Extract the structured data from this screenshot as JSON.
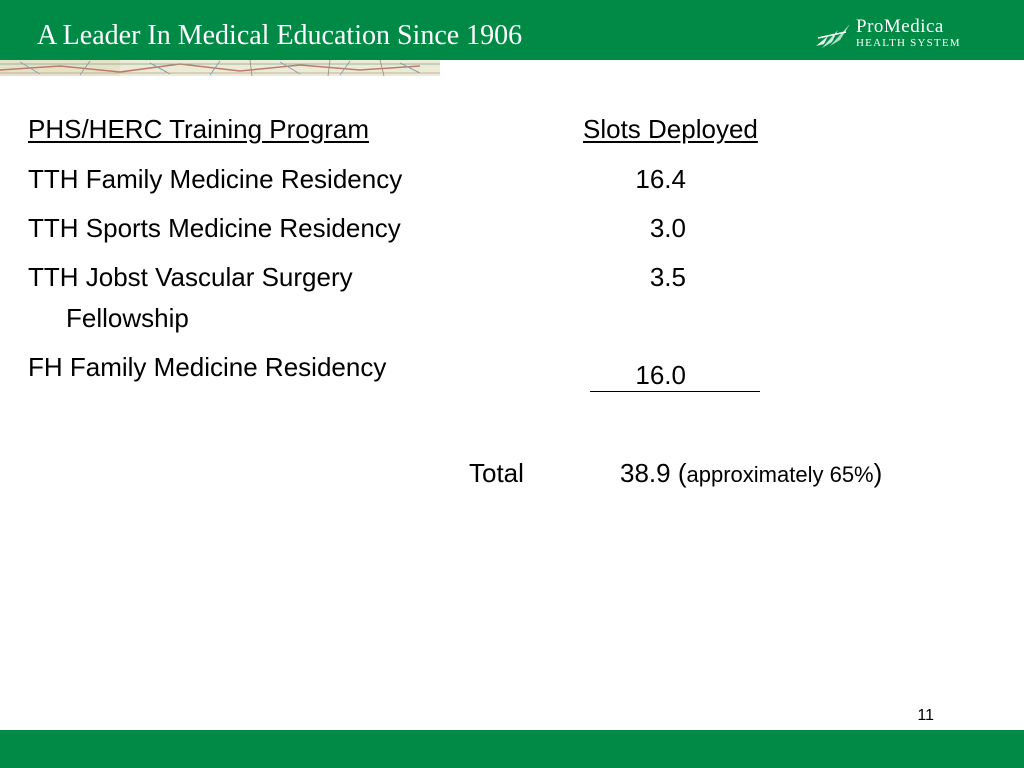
{
  "header": {
    "title": "A Leader In Medical Education Since 1906",
    "logo_line1": "ProMedica",
    "logo_line2": "HEALTH SYSTEM",
    "background": "#008a45"
  },
  "table": {
    "col_program_header": "PHS/HERC Training Program",
    "col_slots_header": "Slots Deployed",
    "rows": [
      {
        "program": "TTH Family Medicine Residency",
        "slots": "16.4"
      },
      {
        "program": "TTH Sports Medicine Residency",
        "slots": "3.0"
      },
      {
        "program": "TTH Jobst Vascular Surgery",
        "program_cont": "Fellowship",
        "slots": "3.5"
      },
      {
        "program": "FH Family Medicine Residency",
        "slots": "16.0"
      }
    ],
    "total_label": "Total",
    "total_value": "38.9",
    "total_note_open": "(",
    "total_note": "approximately 65%",
    "total_note_close": ")"
  },
  "footer": {
    "page_number": "11",
    "background": "#008a45"
  }
}
